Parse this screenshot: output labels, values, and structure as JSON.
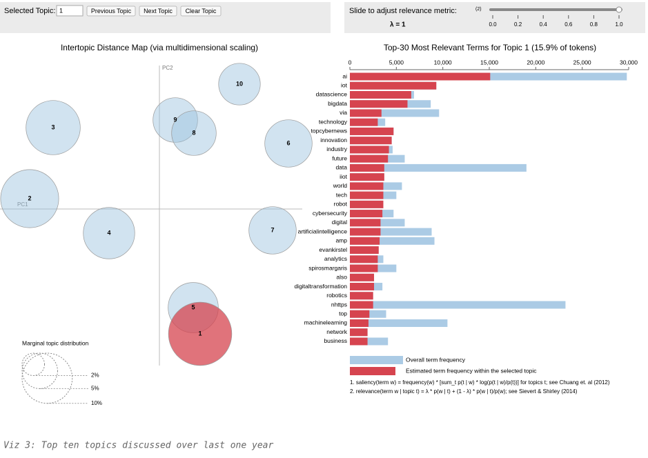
{
  "controls": {
    "selected_topic_label": "Selected Topic:",
    "selected_topic": "1",
    "buttons": [
      "Previous Topic",
      "Next Topic",
      "Clear Topic"
    ],
    "slider_label": "Slide to adjust relevance metric:",
    "slider_note": "(2)",
    "lambda_label": "λ = 1",
    "slider": {
      "value": 1,
      "min": 0,
      "max": 1,
      "ticks": [
        {
          "value": 0,
          "label": "0.0"
        },
        0.2,
        0.4,
        0.6,
        0.8,
        {
          "value": 1,
          "label": "1.0"
        }
      ]
    }
  },
  "chart_data": [
    {
      "type": "bubble",
      "title": "Intertopic Distance Map (via multidimensional scaling)",
      "x_label": "PC1",
      "y_label": "PC2",
      "xlim": [
        -0.231,
        0.207
      ],
      "ylim": [
        -0.227,
        0.208
      ],
      "labels": [
        "10",
        "3",
        "9",
        "8",
        "6",
        "2",
        "4",
        "7",
        "5",
        "1"
      ],
      "x": [
        0.116,
        -0.154,
        0.023,
        0.05,
        0.187,
        -0.188,
        -0.073,
        0.164,
        0.049,
        0.059
      ],
      "y": [
        0.181,
        0.118,
        0.129,
        0.11,
        0.095,
        0.015,
        -0.035,
        -0.031,
        -0.143,
        -0.181
      ],
      "sizes": [
        6.9,
        11.7,
        7.9,
        7.9,
        8.9,
        13.4,
        10.5,
        8.9,
        10.0,
        15.9
      ],
      "colors": [
        "#9ac0de",
        "#9ac0de",
        "#9ac0de",
        "#9ac0de",
        "#9ac0de",
        "#9ac0de",
        "#9ac0de",
        "#9ac0de",
        "#9ac0de",
        "#d6444f"
      ],
      "size_legend": {
        "title": "Marginal topic distribution",
        "values": [
          {
            "value": 2,
            "label": "2%"
          },
          {
            "value": 5,
            "label": "5%"
          },
          {
            "value": 10,
            "label": "10%"
          }
        ]
      }
    },
    {
      "type": "bar",
      "orientation": "horizontal",
      "title": "Top-30 Most Relevant Terms for Topic 1 (15.9% of tokens)",
      "categories": [
        "ai",
        "iot",
        "datascience",
        "bigdata",
        "via",
        "technology",
        "topcybernews",
        "innovation",
        "industry",
        "future",
        "data",
        "iiot",
        "world",
        "tech",
        "robot",
        "cybersecurity",
        "digital",
        "artificialintelligence",
        "amp",
        "evankirstel",
        "analytics",
        "spirosmargaris",
        "also",
        "digitaltransformation",
        "robotics",
        "nhttps",
        "top",
        "machinelearning",
        "network",
        "business"
      ],
      "series": [
        {
          "name": "Overall term frequency",
          "color": "#abcbe5",
          "values": [
            29800,
            9300,
            6900,
            8700,
            9600,
            3800,
            4700,
            4500,
            4600,
            5900,
            19000,
            3700,
            5600,
            5000,
            3600,
            4700,
            5900,
            8800,
            9100,
            3100,
            3600,
            5000,
            2600,
            3500,
            2500,
            23200,
            3900,
            10500,
            1900,
            4100
          ]
        },
        {
          "name": "Estimated term frequency within the selected topic",
          "color": "#d6444f",
          "values": [
            15100,
            9300,
            6600,
            6200,
            3400,
            3000,
            4700,
            4500,
            4200,
            4100,
            3700,
            3700,
            3600,
            3600,
            3600,
            3500,
            3300,
            3300,
            3200,
            3100,
            3000,
            3000,
            2600,
            2600,
            2500,
            2500,
            2100,
            2000,
            1900,
            1900
          ]
        }
      ],
      "xlim": [
        0,
        30000
      ],
      "xticks": [
        0,
        {
          "value": 5000,
          "label": "5,000"
        },
        {
          "value": 10000,
          "label": "10,000"
        },
        {
          "value": 15000,
          "label": "15,000"
        },
        {
          "value": 20000,
          "label": "20,000"
        },
        {
          "value": 25000,
          "label": "25,000"
        },
        {
          "value": 30000,
          "label": "30,000"
        }
      ],
      "notes": [
        "1. saliency(term w) = frequency(w) * [sum_t p(t | w) * log(p(t | w)/p(t))] for topics t; see Chuang et. al (2012)",
        "2. relevance(term w | topic t) = λ * p(w | t) + (1 - λ) * p(w | t)/p(w); see Sievert & Shirley (2014)"
      ]
    }
  ],
  "caption": "Viz 3: Top ten topics discussed over last one year"
}
